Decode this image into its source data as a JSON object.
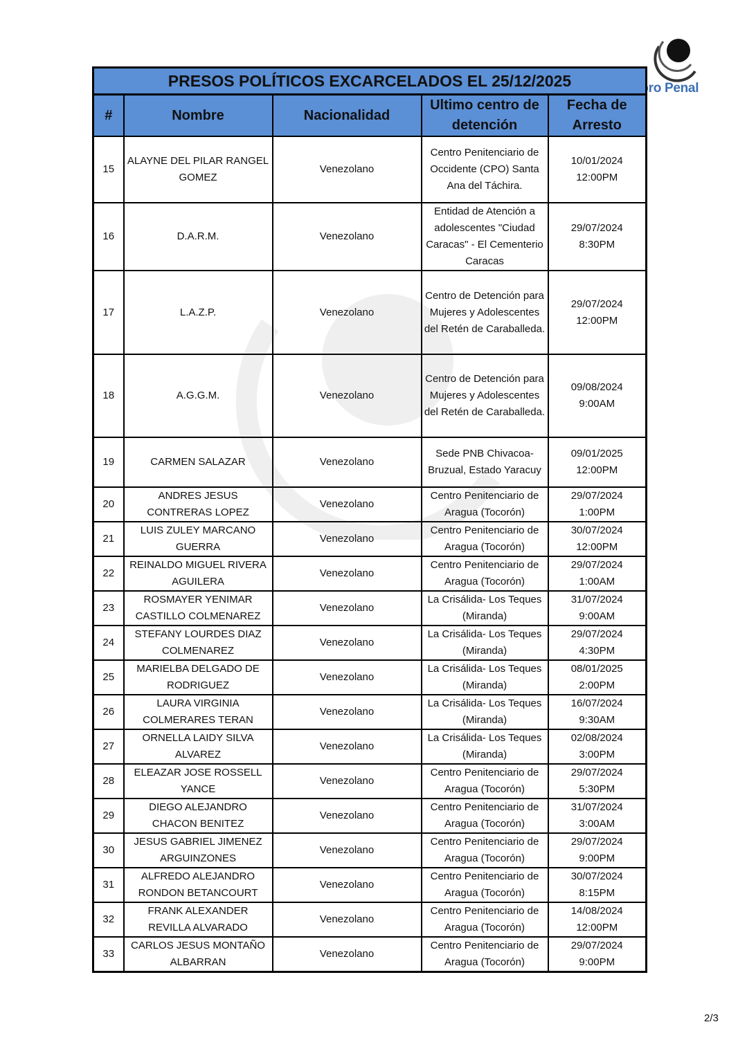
{
  "logo": {
    "text": "Foro Penal"
  },
  "table": {
    "title": "PRESOS POLÍTICOS EXCARCELADOS EL 25/12/2025",
    "headers": [
      "#",
      "Nombre",
      "Nacionalidad",
      "Ultimo centro de detención",
      "Fecha de Arresto"
    ],
    "rows": [
      {
        "num": "15",
        "nombre": "ALAYNE DEL PILAR RANGEL GOMEZ",
        "nacionalidad": "Venezolano",
        "centro": "Centro Penitenciario de Occidente (CPO) Santa Ana del Táchira.",
        "fecha": "10/01/2024",
        "hora": "12:00PM"
      },
      {
        "num": "16",
        "nombre": "D.A.R.M.",
        "nacionalidad": "Venezolano",
        "centro": "Entidad de Atención a adolescentes \"Ciudad Caracas\" - El Cementerio Caracas",
        "fecha": "29/07/2024",
        "hora": "8:30PM"
      },
      {
        "num": "17",
        "nombre": "L.A.Z.P.",
        "nacionalidad": "Venezolano",
        "centro": "Centro de Detención para Mujeres y Adolescentes del Retén de Caraballeda.",
        "fecha": "29/07/2024",
        "hora": "12:00PM"
      },
      {
        "num": "18",
        "nombre": "A.G.G.M.",
        "nacionalidad": "Venezolano",
        "centro": "Centro de Detención para Mujeres y Adolescentes del Retén de Caraballeda.",
        "fecha": "09/08/2024",
        "hora": "9:00AM"
      },
      {
        "num": "19",
        "nombre": "CARMEN SALAZAR",
        "nacionalidad": "Venezolano",
        "centro": "Sede PNB Chivacoa- Bruzual, Estado Yaracuy",
        "fecha": "09/01/2025",
        "hora": "12:00PM"
      },
      {
        "num": "20",
        "nombre": "ANDRES JESUS CONTRERAS LOPEZ",
        "nacionalidad": "Venezolano",
        "centro": "Centro Penitenciario de Aragua (Tocorón)",
        "fecha": "29/07/2024",
        "hora": "1:00PM"
      },
      {
        "num": "21",
        "nombre": "LUIS ZULEY MARCANO GUERRA",
        "nacionalidad": "Venezolano",
        "centro": "Centro Penitenciario de Aragua (Tocorón)",
        "fecha": "30/07/2024",
        "hora": "12:00PM"
      },
      {
        "num": "22",
        "nombre": "REINALDO MIGUEL RIVERA AGUILERA",
        "nacionalidad": "Venezolano",
        "centro": "Centro Penitenciario de Aragua (Tocorón)",
        "fecha": "29/07/2024",
        "hora": "1:00AM"
      },
      {
        "num": "23",
        "nombre": "ROSMAYER YENIMAR CASTILLO COLMENAREZ",
        "nacionalidad": "Venezolano",
        "centro": "La Crisálida- Los Teques (Miranda)",
        "fecha": "31/07/2024",
        "hora": "9:00AM"
      },
      {
        "num": "24",
        "nombre": "STEFANY LOURDES DIAZ COLMENAREZ",
        "nacionalidad": "Venezolano",
        "centro": "La Crisálida- Los Teques (Miranda)",
        "fecha": "29/07/2024",
        "hora": "4:30PM"
      },
      {
        "num": "25",
        "nombre": "MARIELBA DELGADO DE RODRIGUEZ",
        "nacionalidad": "Venezolano",
        "centro": "La Crisálida- Los Teques (Miranda)",
        "fecha": "08/01/2025",
        "hora": "2:00PM"
      },
      {
        "num": "26",
        "nombre": "LAURA VIRGINIA COLMERARES TERAN",
        "nacionalidad": "Venezolano",
        "centro": "La Crisálida- Los Teques (Miranda)",
        "fecha": "16/07/2024",
        "hora": "9:30AM"
      },
      {
        "num": "27",
        "nombre": "ORNELLA LAIDY SILVA ALVAREZ",
        "nacionalidad": "Venezolano",
        "centro": "La Crisálida- Los Teques (Miranda)",
        "fecha": "02/08/2024",
        "hora": "3:00PM"
      },
      {
        "num": "28",
        "nombre": "ELEAZAR JOSE ROSSELL YANCE",
        "nacionalidad": "Venezolano",
        "centro": "Centro Penitenciario de Aragua (Tocorón)",
        "fecha": "29/07/2024",
        "hora": "5:30PM"
      },
      {
        "num": "29",
        "nombre": "DIEGO ALEJANDRO CHACON BENITEZ",
        "nacionalidad": "Venezolano",
        "centro": "Centro Penitenciario de Aragua (Tocorón)",
        "fecha": "31/07/2024",
        "hora": "3:00AM"
      },
      {
        "num": "30",
        "nombre": "JESUS GABRIEL JIMENEZ ARGUINZONES",
        "nacionalidad": "Venezolano",
        "centro": "Centro Penitenciario de Aragua (Tocorón)",
        "fecha": "29/07/2024",
        "hora": "9:00PM"
      },
      {
        "num": "31",
        "nombre": "ALFREDO ALEJANDRO RONDON BETANCOURT",
        "nacionalidad": "Venezolano",
        "centro": "Centro Penitenciario de Aragua (Tocorón)",
        "fecha": "30/07/2024",
        "hora": "8:15PM"
      },
      {
        "num": "32",
        "nombre": "FRANK ALEXANDER REVILLA ALVARADO",
        "nacionalidad": "Venezolano",
        "centro": "Centro Penitenciario de Aragua (Tocorón)",
        "fecha": "14/08/2024",
        "hora": "12:00PM"
      },
      {
        "num": "33",
        "nombre": "CARLOS JESUS MONTAÑO ALBARRAN",
        "nacionalidad": "Venezolano",
        "centro": "Centro Penitenciario de Aragua (Tocorón)",
        "fecha": "29/07/2024",
        "hora": "9:00PM"
      }
    ]
  },
  "colors": {
    "header_bg": "#5b8fd6",
    "logo_blue": "#3b6fb4"
  },
  "page": {
    "number": "2/3"
  }
}
